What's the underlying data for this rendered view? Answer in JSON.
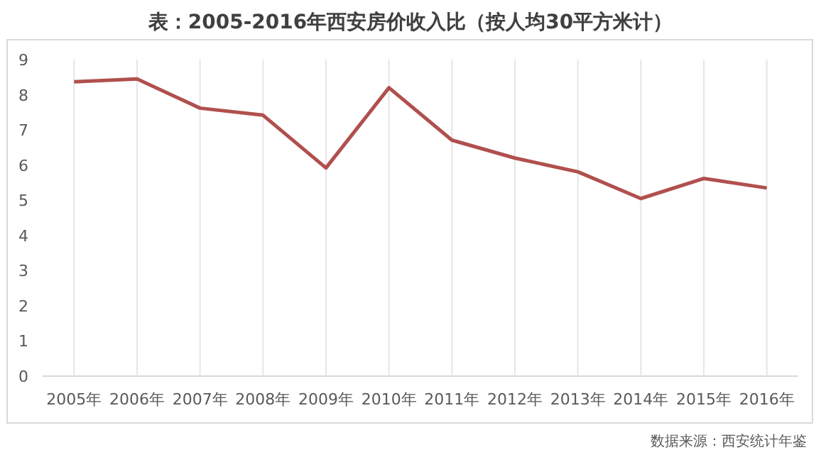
{
  "chart_data": {
    "type": "line",
    "title": "表：2005-2016年西安房价收入比（按人均30平方米计）",
    "categories": [
      "2005年",
      "2006年",
      "2007年",
      "2008年",
      "2009年",
      "2010年",
      "2011年",
      "2012年",
      "2013年",
      "2014年",
      "2015年",
      "2016年"
    ],
    "series": [
      {
        "color": "#b0504e",
        "values": [
          8.37,
          8.45,
          7.62,
          7.42,
          5.92,
          8.2,
          6.71,
          6.2,
          5.81,
          5.05,
          5.62,
          5.35
        ]
      }
    ],
    "ylim": [
      0,
      9
    ],
    "yticks": [
      0,
      1,
      2,
      3,
      4,
      5,
      6,
      7,
      8,
      9
    ],
    "annotations": [
      "数据来源：西安统计年鉴"
    ],
    "grid": "x",
    "marker": "none",
    "line_style": "solid"
  }
}
